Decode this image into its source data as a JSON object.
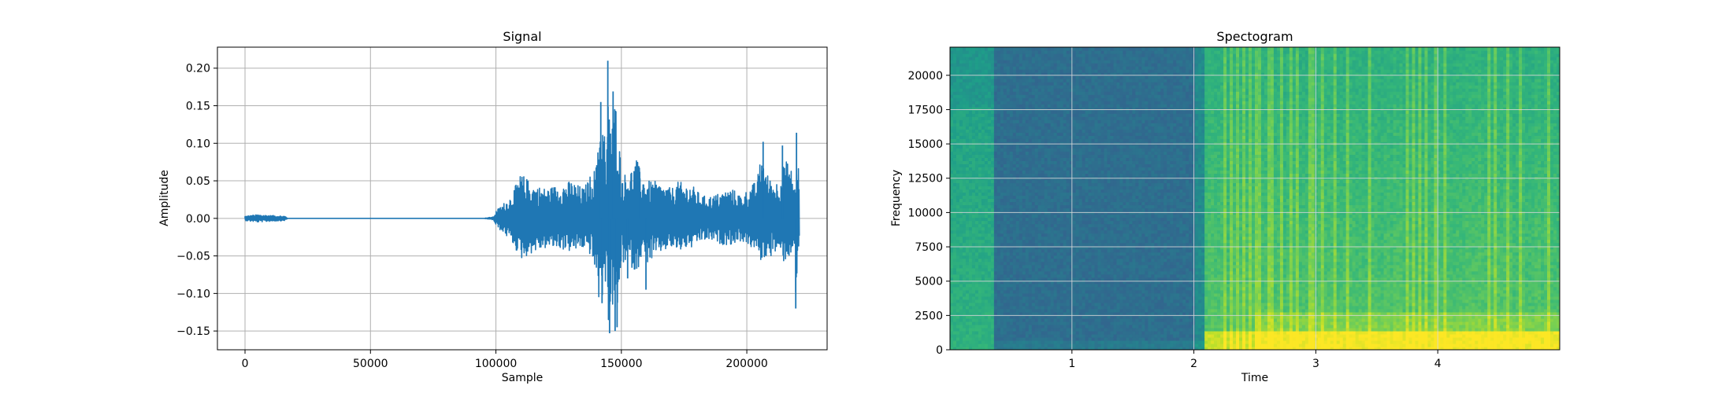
{
  "chart_data": [
    {
      "type": "line",
      "title": "Signal",
      "xlabel": "Sample",
      "ylabel": "Amplitude",
      "xlim": [
        -11000,
        232000
      ],
      "ylim": [
        -0.175,
        0.228
      ],
      "grid": true,
      "line_color": "#1f77b4",
      "x_ticks": [
        0,
        50000,
        100000,
        150000,
        200000
      ],
      "x_tick_labels": [
        "0",
        "50000",
        "100000",
        "150000",
        "200000"
      ],
      "y_ticks": [
        -0.15,
        -0.1,
        -0.05,
        0.0,
        0.05,
        0.1,
        0.15,
        0.2
      ],
      "y_tick_labels": [
        "−0.15",
        "−0.10",
        "−0.05",
        "0.00",
        "0.05",
        "0.10",
        "0.15",
        "0.20"
      ],
      "envelope": {
        "x": [
          0,
          5000,
          10000,
          16000,
          17000,
          95000,
          99000,
          100000,
          103000,
          106000,
          110000,
          115000,
          120000,
          125000,
          130000,
          135000,
          138000,
          140000,
          141000,
          142000,
          143000,
          144000,
          145000,
          146000,
          148000,
          150000,
          153000,
          156000,
          158000,
          160000,
          163000,
          166000,
          170000,
          173000,
          175000,
          178000,
          182000,
          186000,
          190000,
          194000,
          198000,
          202000,
          204000,
          206000,
          208000,
          210000,
          212000,
          214000,
          215000,
          216000,
          217000,
          218000,
          219000,
          219500,
          220000,
          220500,
          221000
        ],
        "upper": [
          0.003,
          0.005,
          0.004,
          0.003,
          0.0,
          0.0,
          0.002,
          0.01,
          0.02,
          0.03,
          0.06,
          0.045,
          0.04,
          0.045,
          0.05,
          0.04,
          0.06,
          0.07,
          0.155,
          0.11,
          0.14,
          0.06,
          0.21,
          0.12,
          0.17,
          0.06,
          0.06,
          0.08,
          0.06,
          0.05,
          0.05,
          0.045,
          0.04,
          0.05,
          0.045,
          0.045,
          0.03,
          0.03,
          0.035,
          0.04,
          0.03,
          0.045,
          0.05,
          0.09,
          0.06,
          0.05,
          0.05,
          0.06,
          0.08,
          0.075,
          0.08,
          0.06,
          0.05,
          0.02,
          0.114,
          0.08,
          0.03
        ],
        "lower": [
          -0.003,
          -0.005,
          -0.004,
          -0.003,
          0.0,
          0.0,
          -0.002,
          -0.01,
          -0.02,
          -0.03,
          -0.055,
          -0.045,
          -0.04,
          -0.04,
          -0.045,
          -0.04,
          -0.05,
          -0.08,
          -0.11,
          -0.09,
          -0.13,
          -0.06,
          -0.155,
          -0.11,
          -0.15,
          -0.06,
          -0.06,
          -0.075,
          -0.05,
          -0.06,
          -0.055,
          -0.045,
          -0.04,
          -0.045,
          -0.04,
          -0.04,
          -0.03,
          -0.03,
          -0.035,
          -0.035,
          -0.03,
          -0.04,
          -0.045,
          -0.06,
          -0.05,
          -0.05,
          -0.045,
          -0.055,
          -0.06,
          -0.05,
          -0.055,
          -0.04,
          -0.04,
          -0.12,
          -0.1,
          -0.06,
          -0.02
        ]
      },
      "spikes": [
        {
          "x": 141800,
          "y": 0.155
        },
        {
          "x": 142300,
          "y": -0.113
        },
        {
          "x": 144600,
          "y": 0.21
        },
        {
          "x": 145300,
          "y": -0.153
        },
        {
          "x": 146700,
          "y": 0.169
        },
        {
          "x": 147500,
          "y": -0.15
        },
        {
          "x": 148300,
          "y": -0.145
        },
        {
          "x": 152500,
          "y": -0.08
        },
        {
          "x": 157300,
          "y": 0.062
        },
        {
          "x": 159800,
          "y": -0.095
        },
        {
          "x": 206500,
          "y": 0.102
        },
        {
          "x": 214200,
          "y": 0.097
        },
        {
          "x": 219500,
          "y": -0.12
        },
        {
          "x": 219800,
          "y": 0.114
        }
      ]
    },
    {
      "type": "heatmap",
      "title": "Spectogram",
      "xlabel": "Time",
      "ylabel": "Frequency",
      "xlim": [
        0.0,
        5.0
      ],
      "ylim": [
        0,
        22050
      ],
      "grid": true,
      "colormap": "viridis",
      "x_ticks": [
        1,
        2,
        3,
        4
      ],
      "x_tick_labels": [
        "1",
        "2",
        "3",
        "4"
      ],
      "y_ticks": [
        0,
        2500,
        5000,
        7500,
        10000,
        12500,
        15000,
        17500,
        20000
      ],
      "y_tick_labels": [
        "0",
        "2500",
        "5000",
        "7500",
        "10000",
        "12500",
        "15000",
        "17500",
        "20000"
      ],
      "regions": [
        {
          "t": [
            0.0,
            0.37
          ],
          "level": "medium"
        },
        {
          "t": [
            0.37,
            2.0
          ],
          "level": "low"
        },
        {
          "t": [
            2.0,
            2.1
          ],
          "level": "low-medium"
        },
        {
          "t": [
            2.1,
            5.0
          ],
          "level": "high"
        }
      ]
    }
  ]
}
